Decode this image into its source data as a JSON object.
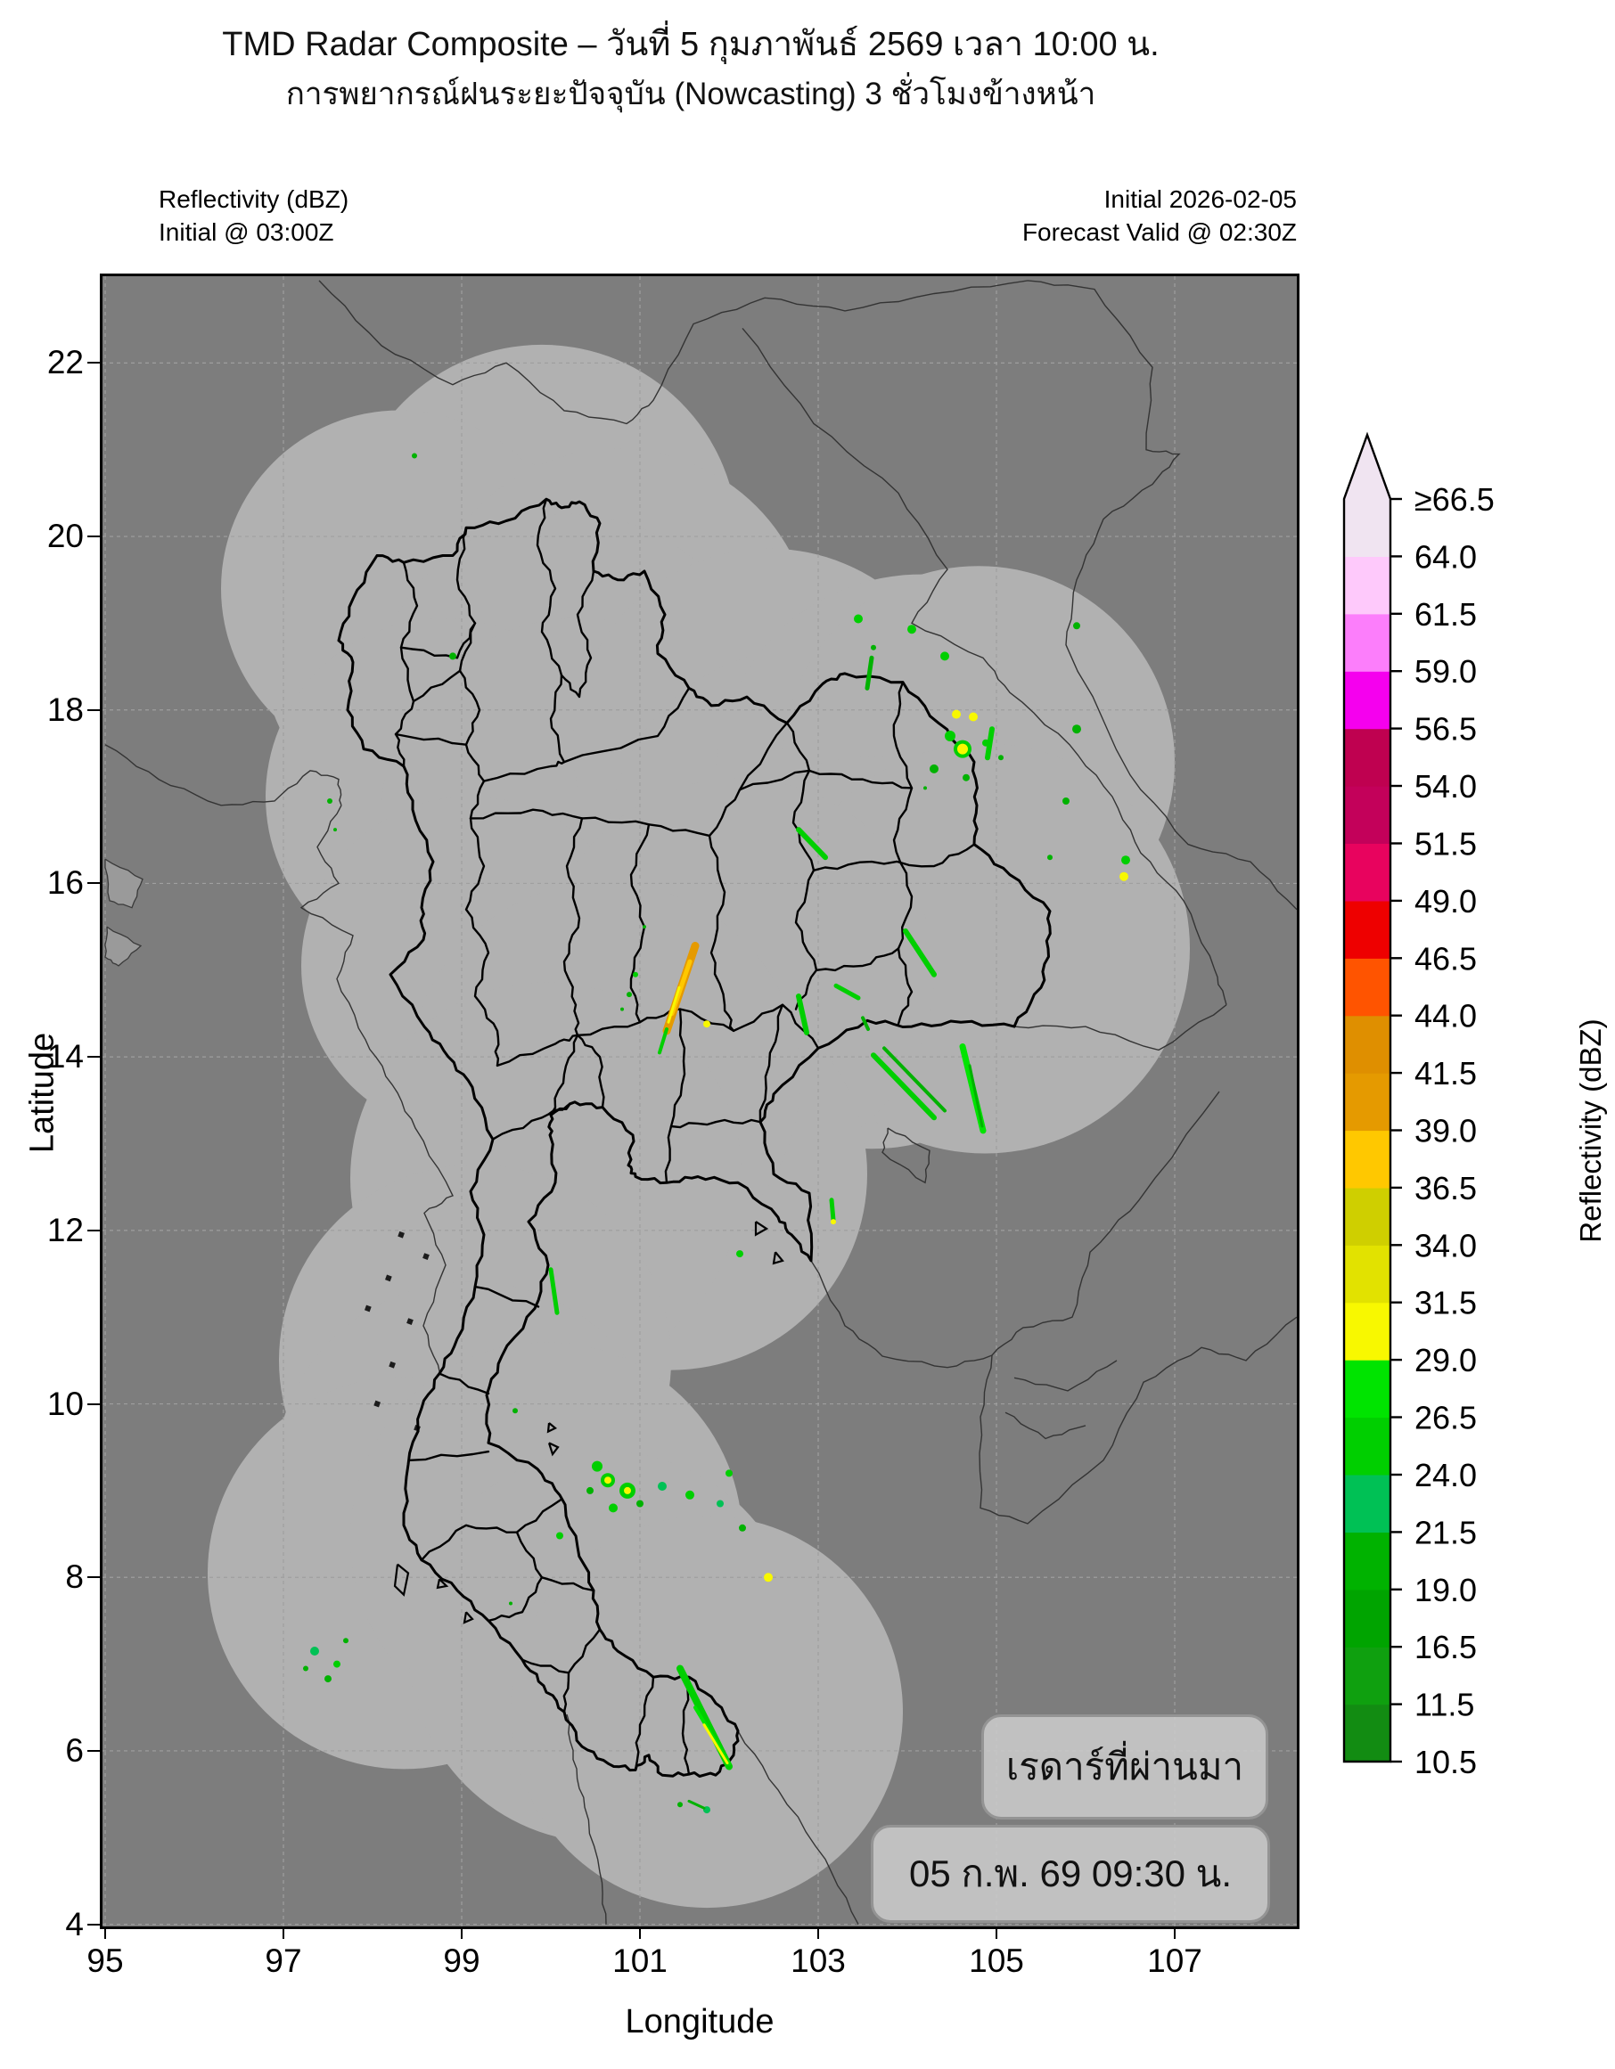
{
  "title": "TMD Radar Composite – วันที่ 5 กุมภาพันธ์ 2569 เวลา 10:00 น.",
  "subtitle": "การพยากรณ์ฝนระยะปัจจุบัน (Nowcasting) 3 ชั่วโมงข้างหน้า",
  "header_left": {
    "line1": "Reflectivity (dBZ)",
    "line2": "Initial @ 03:00Z"
  },
  "header_right": {
    "line1": "Initial 2026-02-05",
    "line2": "Forecast Valid @ 02:30Z"
  },
  "axes": {
    "xlabel": "Longitude",
    "ylabel": "Latitude",
    "x_ticks": [
      95,
      97,
      99,
      101,
      103,
      105,
      107
    ],
    "y_ticks": [
      4,
      6,
      8,
      10,
      12,
      14,
      16,
      18,
      20,
      22
    ],
    "lon_range": [
      94.97,
      108.37
    ],
    "lat_range": [
      4.0,
      23.0
    ]
  },
  "overlay": {
    "line1": "เรดาร์ที่ผ่านมา",
    "line2": "05 ก.พ. 69 09:30 น."
  },
  "colorbar": {
    "label": "Reflectivity (dBZ)",
    "tick_labels": [
      "≥66.5",
      "64.0",
      "61.5",
      "59.0",
      "56.5",
      "54.0",
      "51.5",
      "49.0",
      "46.5",
      "44.0",
      "41.5",
      "39.0",
      "36.5",
      "34.0",
      "31.5",
      "29.0",
      "26.5",
      "24.0",
      "21.5",
      "19.0",
      "16.5",
      "11.5",
      "10.5"
    ],
    "boundaries": [
      10.5,
      11.5,
      16.5,
      19.0,
      21.5,
      24.0,
      26.5,
      29.0,
      31.5,
      34.0,
      36.5,
      39.0,
      41.5,
      44.0,
      46.5,
      49.0,
      51.5,
      54.0,
      56.5,
      59.0,
      61.5,
      64.0,
      66.5
    ],
    "colors": [
      "#128c12",
      "#0fa00f",
      "#00a400",
      "#00b200",
      "#00c155",
      "#00cf00",
      "#00e400",
      "#f8f800",
      "#e2e200",
      "#cfcf00",
      "#ffc800",
      "#e59a00",
      "#df8f00",
      "#ff5400",
      "#ee0000",
      "#e8035e",
      "#c3015a",
      "#bf0150",
      "#f500ee",
      "#fc7efb",
      "#fec9fb",
      "#f0e4f1"
    ],
    "extend_color": "#f0e4f1"
  },
  "map": {
    "background_color": "#7d7d7d",
    "coverage_color": "#b1b1b1",
    "grid_color": "#9f9f9f",
    "province_line_color": "#000000",
    "neighbor_line_color": "#343434",
    "coverage_circles": [
      {
        "lon": 99.9,
        "lat": 19.95,
        "r": 2.2
      },
      {
        "lon": 98.95,
        "lat": 18.75,
        "r": 2.2
      },
      {
        "lon": 98.3,
        "lat": 19.4,
        "r": 2.0
      },
      {
        "lon": 100.75,
        "lat": 18.75,
        "r": 2.2
      },
      {
        "lon": 100.2,
        "lat": 18.0,
        "r": 2.2
      },
      {
        "lon": 98.8,
        "lat": 17.0,
        "r": 2.0
      },
      {
        "lon": 100.3,
        "lat": 16.8,
        "r": 2.2
      },
      {
        "lon": 99.1,
        "lat": 15.05,
        "r": 1.9
      },
      {
        "lon": 102.45,
        "lat": 17.6,
        "r": 2.2
      },
      {
        "lon": 102.85,
        "lat": 16.45,
        "r": 2.2
      },
      {
        "lon": 104.15,
        "lat": 17.2,
        "r": 2.3
      },
      {
        "lon": 104.8,
        "lat": 17.4,
        "r": 2.2
      },
      {
        "lon": 103.6,
        "lat": 15.2,
        "r": 2.2
      },
      {
        "lon": 104.87,
        "lat": 15.25,
        "r": 2.3
      },
      {
        "lon": 102.1,
        "lat": 14.95,
        "r": 2.2
      },
      {
        "lon": 101.35,
        "lat": 12.65,
        "r": 2.2
      },
      {
        "lon": 100.6,
        "lat": 13.75,
        "r": 2.2
      },
      {
        "lon": 99.95,
        "lat": 12.6,
        "r": 2.2
      },
      {
        "lon": 99.15,
        "lat": 10.5,
        "r": 2.2
      },
      {
        "lon": 99.1,
        "lat": 9.15,
        "r": 2.2
      },
      {
        "lon": 98.35,
        "lat": 8.05,
        "r": 2.2
      },
      {
        "lon": 99.95,
        "lat": 8.45,
        "r": 2.2
      },
      {
        "lon": 100.6,
        "lat": 7.2,
        "r": 2.2
      },
      {
        "lon": 101.75,
        "lat": 6.45,
        "r": 2.2
      }
    ],
    "echoes": [
      {
        "t": "d",
        "lon": 98.47,
        "lat": 20.93,
        "r": 3,
        "dbz": 20
      },
      {
        "t": "d",
        "lon": 98.9,
        "lat": 18.62,
        "r": 4,
        "dbz": 20
      },
      {
        "t": "d",
        "lon": 97.52,
        "lat": 16.95,
        "r": 3,
        "dbz": 20
      },
      {
        "t": "d",
        "lon": 97.58,
        "lat": 16.62,
        "r": 2,
        "dbz": 20
      },
      {
        "t": "d",
        "lon": 105.9,
        "lat": 18.97,
        "r": 4,
        "dbz": 20
      },
      {
        "t": "d",
        "lon": 103.45,
        "lat": 19.05,
        "r": 5,
        "dbz": 24
      },
      {
        "t": "d",
        "lon": 104.05,
        "lat": 18.93,
        "r": 5,
        "dbz": 24
      },
      {
        "t": "d",
        "lon": 103.62,
        "lat": 18.72,
        "r": 3,
        "dbz": 20
      },
      {
        "t": "d",
        "lon": 104.42,
        "lat": 18.62,
        "r": 5,
        "dbz": 24
      },
      {
        "t": "s",
        "lon": 103.55,
        "lat": 18.25,
        "lon2": 103.6,
        "lat2": 18.6,
        "w": 5,
        "dbz": 20
      },
      {
        "t": "d",
        "lon": 104.55,
        "lat": 17.95,
        "r": 5,
        "dbz": 30
      },
      {
        "t": "d",
        "lon": 104.74,
        "lat": 17.92,
        "r": 5,
        "dbz": 30
      },
      {
        "t": "d",
        "lon": 104.62,
        "lat": 17.55,
        "r": 10,
        "dbz": 24
      },
      {
        "t": "d",
        "lon": 104.62,
        "lat": 17.55,
        "r": 6,
        "dbz": 30
      },
      {
        "t": "d",
        "lon": 104.48,
        "lat": 17.7,
        "r": 6,
        "dbz": 24
      },
      {
        "t": "d",
        "lon": 104.3,
        "lat": 17.32,
        "r": 5,
        "dbz": 20
      },
      {
        "t": "d",
        "lon": 104.66,
        "lat": 17.22,
        "r": 4,
        "dbz": 20
      },
      {
        "t": "d",
        "lon": 104.88,
        "lat": 17.62,
        "r": 4,
        "dbz": 24
      },
      {
        "t": "s",
        "lon": 104.9,
        "lat": 17.45,
        "lon2": 104.95,
        "lat2": 17.78,
        "w": 6,
        "dbz": 24
      },
      {
        "t": "d",
        "lon": 105.05,
        "lat": 17.45,
        "r": 3,
        "dbz": 20
      },
      {
        "t": "d",
        "lon": 104.2,
        "lat": 17.1,
        "r": 2,
        "dbz": 20
      },
      {
        "t": "d",
        "lon": 105.9,
        "lat": 17.78,
        "r": 5,
        "dbz": 20
      },
      {
        "t": "d",
        "lon": 105.78,
        "lat": 16.95,
        "r": 4,
        "dbz": 20
      },
      {
        "t": "d",
        "lon": 105.6,
        "lat": 16.3,
        "r": 3,
        "dbz": 20
      },
      {
        "t": "d",
        "lon": 106.45,
        "lat": 16.27,
        "r": 5,
        "dbz": 24
      },
      {
        "t": "d",
        "lon": 106.43,
        "lat": 16.08,
        "r": 5,
        "dbz": 31
      },
      {
        "t": "s",
        "lon": 102.78,
        "lat": 16.62,
        "lon2": 103.08,
        "lat2": 16.3,
        "w": 6,
        "dbz": 24
      },
      {
        "t": "s",
        "lon": 103.98,
        "lat": 15.45,
        "lon2": 104.3,
        "lat2": 14.95,
        "w": 6,
        "dbz": 24
      },
      {
        "t": "s",
        "lon": 103.2,
        "lat": 14.82,
        "lon2": 103.45,
        "lat2": 14.68,
        "w": 5,
        "dbz": 24
      },
      {
        "t": "s",
        "lon": 102.78,
        "lat": 14.7,
        "lon2": 102.87,
        "lat2": 14.28,
        "w": 6,
        "dbz": 24
      },
      {
        "t": "s",
        "lon": 103.5,
        "lat": 14.45,
        "lon2": 103.56,
        "lat2": 14.32,
        "w": 4,
        "dbz": 20
      },
      {
        "t": "s",
        "lon": 101.62,
        "lat": 15.28,
        "lon2": 101.3,
        "lat2": 14.3,
        "w": 9,
        "dbz": 40
      },
      {
        "t": "s",
        "lon": 101.56,
        "lat": 15.1,
        "lon2": 101.36,
        "lat2": 14.5,
        "w": 5,
        "dbz": 37
      },
      {
        "t": "s",
        "lon": 101.44,
        "lat": 14.8,
        "lon2": 101.32,
        "lat2": 14.4,
        "w": 3,
        "dbz": 30
      },
      {
        "t": "s",
        "lon": 101.3,
        "lat": 14.32,
        "lon2": 101.22,
        "lat2": 14.05,
        "w": 4,
        "dbz": 24
      },
      {
        "t": "d",
        "lon": 101.75,
        "lat": 14.38,
        "r": 4,
        "dbz": 31
      },
      {
        "t": "d",
        "lon": 100.95,
        "lat": 14.95,
        "r": 3,
        "dbz": 24
      },
      {
        "t": "d",
        "lon": 100.88,
        "lat": 14.72,
        "r": 3,
        "dbz": 20
      },
      {
        "t": "d",
        "lon": 101.05,
        "lat": 15.5,
        "r": 2,
        "dbz": 20
      },
      {
        "t": "d",
        "lon": 100.8,
        "lat": 14.55,
        "r": 2,
        "dbz": 20
      },
      {
        "t": "s",
        "lon": 103.62,
        "lat": 14.02,
        "lon2": 104.3,
        "lat2": 13.3,
        "w": 6,
        "dbz": 24
      },
      {
        "t": "s",
        "lon": 103.74,
        "lat": 14.1,
        "lon2": 104.42,
        "lat2": 13.38,
        "w": 4,
        "dbz": 20
      },
      {
        "t": "s",
        "lon": 104.62,
        "lat": 14.12,
        "lon2": 104.85,
        "lat2": 13.15,
        "w": 7,
        "dbz": 27
      },
      {
        "t": "s",
        "lon": 104.7,
        "lat": 13.9,
        "lon2": 104.84,
        "lat2": 13.2,
        "w": 3,
        "dbz": 20
      },
      {
        "t": "d",
        "lon": 102.12,
        "lat": 11.73,
        "r": 4,
        "dbz": 24
      },
      {
        "t": "s",
        "lon": 103.15,
        "lat": 12.35,
        "lon2": 103.17,
        "lat2": 12.12,
        "w": 5,
        "dbz": 24
      },
      {
        "t": "d",
        "lon": 103.17,
        "lat": 12.1,
        "r": 3,
        "dbz": 31
      },
      {
        "t": "s",
        "lon": 100.0,
        "lat": 11.55,
        "lon2": 100.07,
        "lat2": 11.05,
        "w": 5,
        "dbz": 24
      },
      {
        "t": "d",
        "lon": 102.44,
        "lat": 8.0,
        "r": 5,
        "dbz": 31
      },
      {
        "t": "d",
        "lon": 100.1,
        "lat": 8.48,
        "r": 4,
        "dbz": 24
      },
      {
        "t": "d",
        "lon": 99.6,
        "lat": 9.92,
        "r": 3,
        "dbz": 20
      },
      {
        "t": "d",
        "lon": 100.52,
        "lat": 9.28,
        "r": 6,
        "dbz": 24
      },
      {
        "t": "d",
        "lon": 100.64,
        "lat": 9.12,
        "r": 8,
        "dbz": 24
      },
      {
        "t": "d",
        "lon": 100.64,
        "lat": 9.12,
        "r": 4,
        "dbz": 31
      },
      {
        "t": "d",
        "lon": 100.86,
        "lat": 9.0,
        "r": 9,
        "dbz": 24
      },
      {
        "t": "d",
        "lon": 100.86,
        "lat": 9.0,
        "r": 4,
        "dbz": 31
      },
      {
        "t": "d",
        "lon": 100.7,
        "lat": 8.8,
        "r": 5,
        "dbz": 24
      },
      {
        "t": "d",
        "lon": 101.0,
        "lat": 8.85,
        "r": 4,
        "dbz": 20
      },
      {
        "t": "d",
        "lon": 100.44,
        "lat": 9.0,
        "r": 4,
        "dbz": 20
      },
      {
        "t": "d",
        "lon": 101.25,
        "lat": 9.05,
        "r": 5,
        "dbz": 22
      },
      {
        "t": "d",
        "lon": 101.56,
        "lat": 8.95,
        "r": 5,
        "dbz": 24
      },
      {
        "t": "d",
        "lon": 101.9,
        "lat": 8.85,
        "r": 4,
        "dbz": 22
      },
      {
        "t": "d",
        "lon": 102.0,
        "lat": 9.2,
        "r": 4,
        "dbz": 24
      },
      {
        "t": "d",
        "lon": 102.15,
        "lat": 8.57,
        "r": 4,
        "dbz": 20
      },
      {
        "t": "d",
        "lon": 99.55,
        "lat": 7.7,
        "r": 2,
        "dbz": 20
      },
      {
        "t": "d",
        "lon": 97.35,
        "lat": 7.15,
        "r": 5,
        "dbz": 22
      },
      {
        "t": "d",
        "lon": 97.6,
        "lat": 7.0,
        "r": 4,
        "dbz": 24
      },
      {
        "t": "d",
        "lon": 97.5,
        "lat": 6.83,
        "r": 4,
        "dbz": 20
      },
      {
        "t": "d",
        "lon": 97.25,
        "lat": 6.95,
        "r": 3,
        "dbz": 20
      },
      {
        "t": "d",
        "lon": 97.7,
        "lat": 7.27,
        "r": 3,
        "dbz": 20
      },
      {
        "t": "s",
        "lon": 101.45,
        "lat": 6.95,
        "lon2": 102.0,
        "lat2": 5.82,
        "w": 8,
        "dbz": 24
      },
      {
        "t": "s",
        "lon": 101.62,
        "lat": 6.5,
        "lon2": 102.0,
        "lat2": 5.85,
        "w": 4,
        "dbz": 27
      },
      {
        "t": "s",
        "lon": 101.72,
        "lat": 6.3,
        "lon2": 101.98,
        "lat2": 5.86,
        "w": 3,
        "dbz": 31
      },
      {
        "t": "d",
        "lon": 101.45,
        "lat": 5.38,
        "r": 3,
        "dbz": 20
      },
      {
        "t": "d",
        "lon": 101.75,
        "lat": 5.32,
        "r": 4,
        "dbz": 22
      },
      {
        "t": "s",
        "lon": 101.55,
        "lat": 5.42,
        "lon2": 101.72,
        "lat2": 5.34,
        "w": 3,
        "dbz": 20
      }
    ]
  }
}
